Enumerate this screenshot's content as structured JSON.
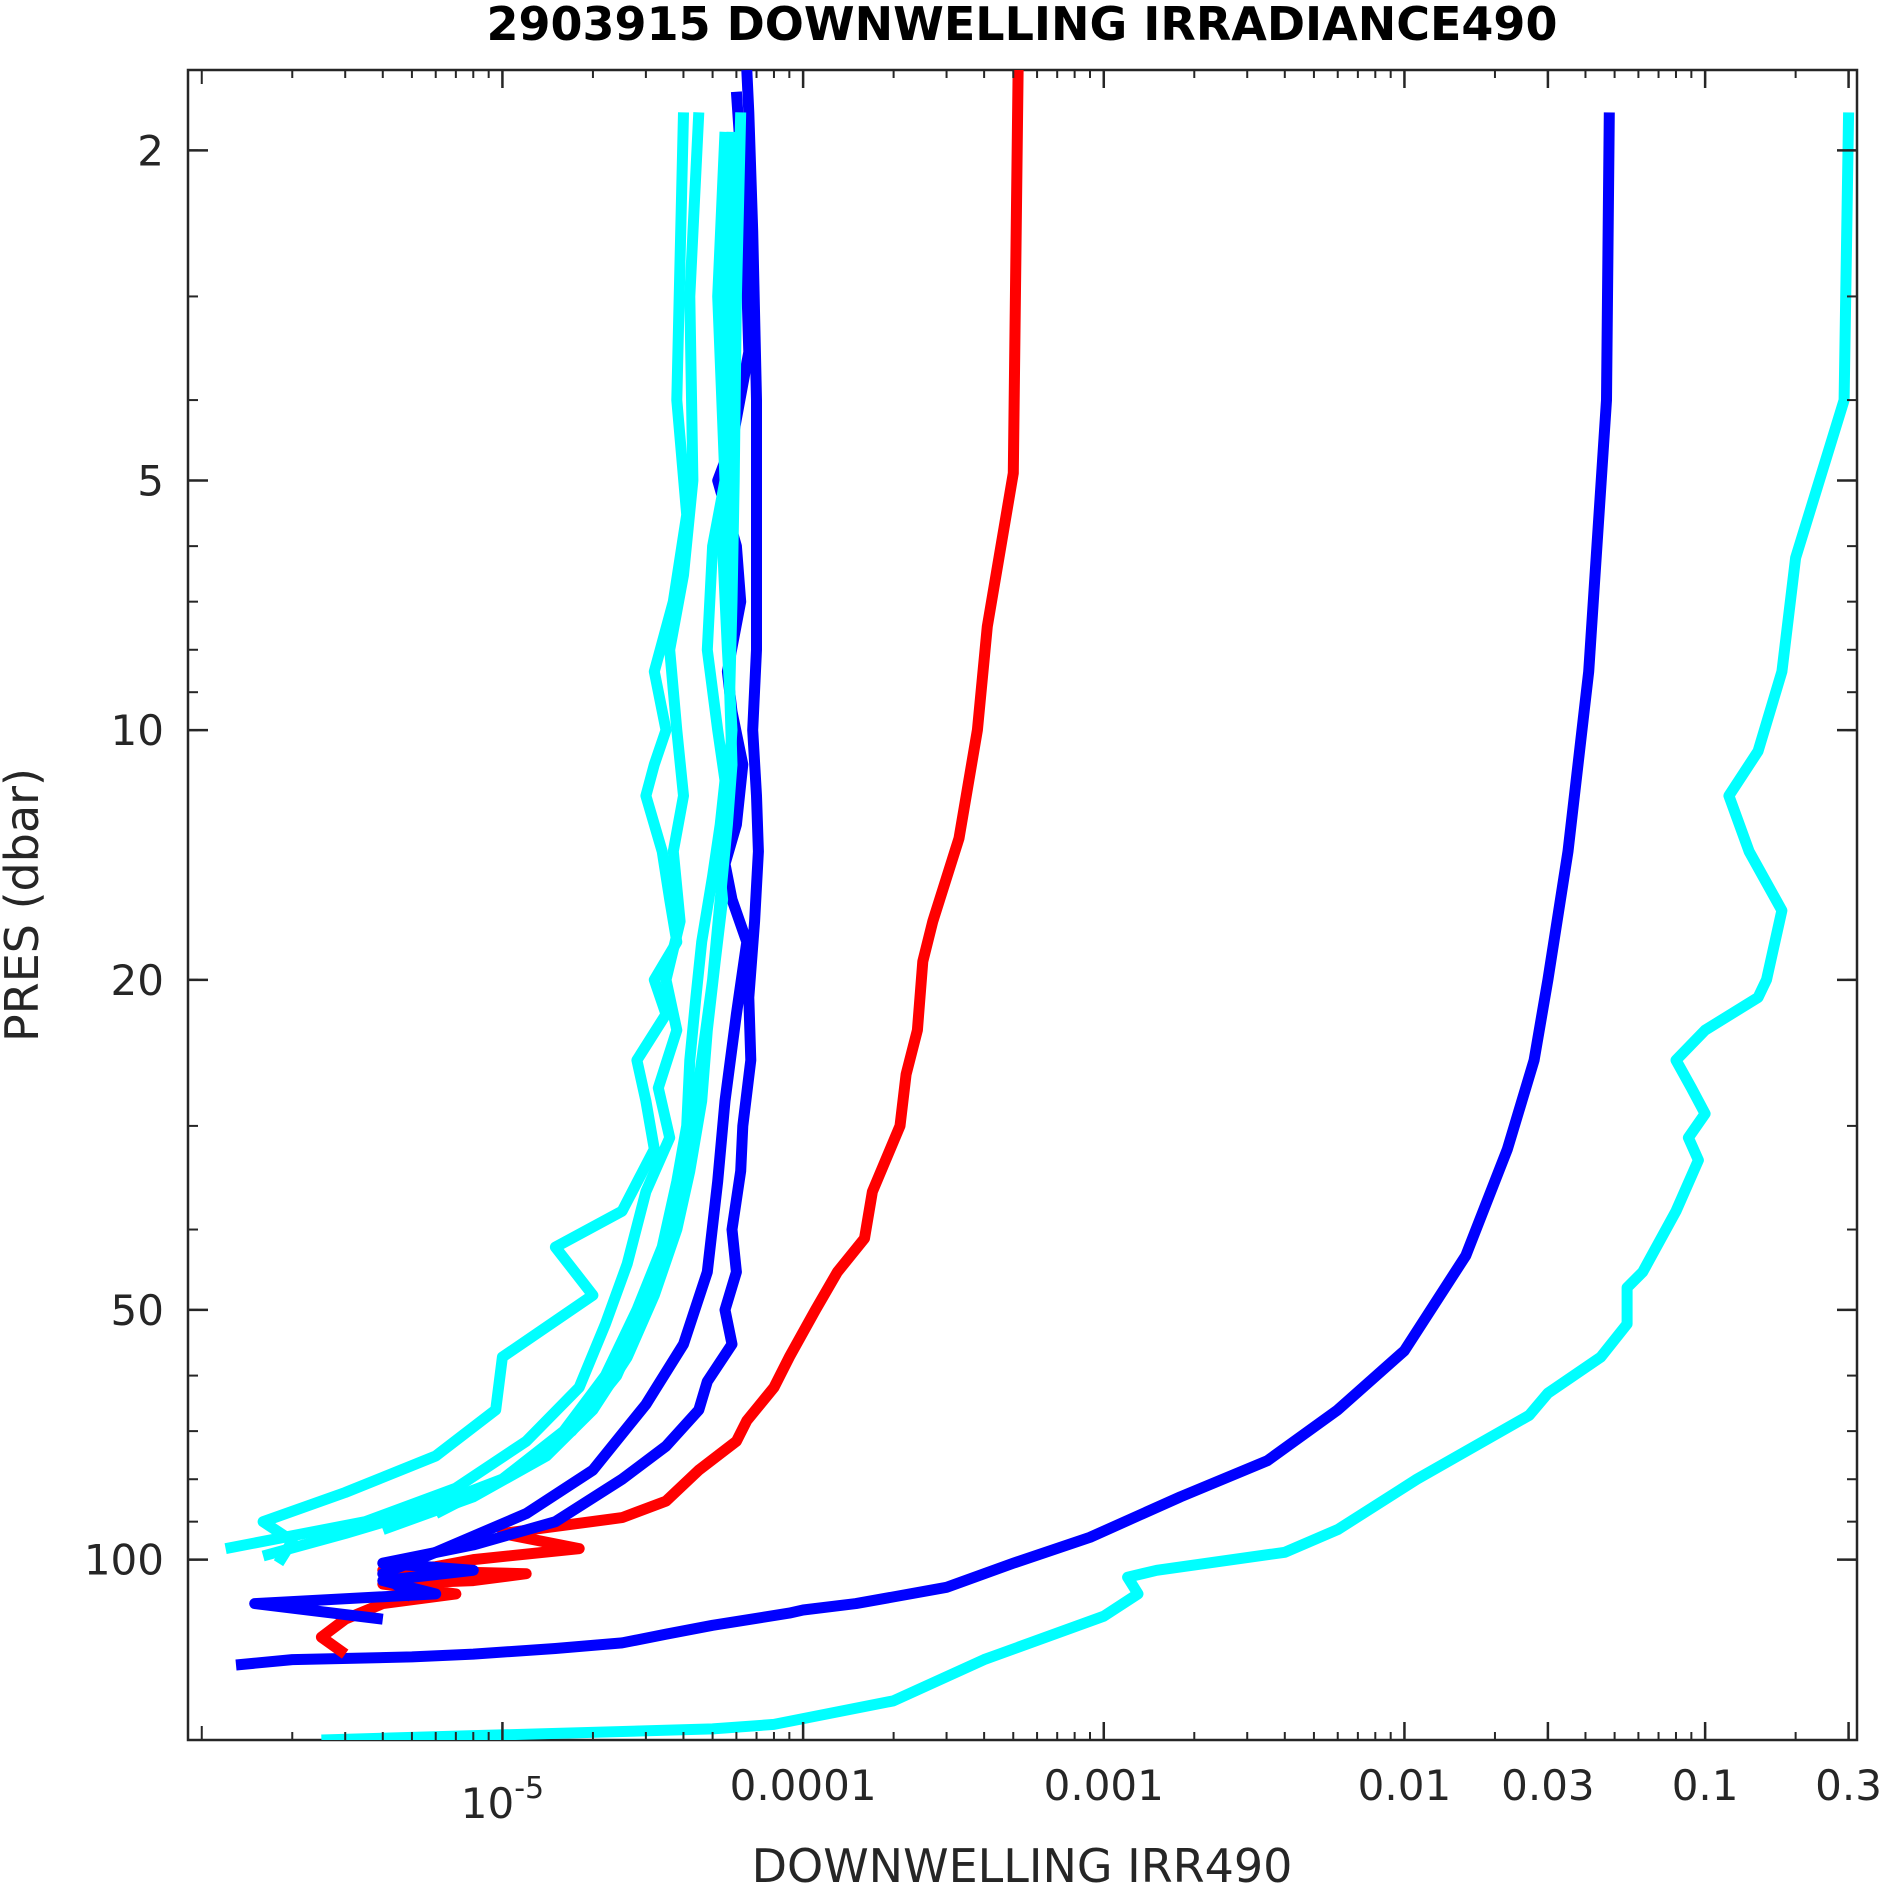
{
  "chart_data": {
    "type": "line",
    "title": "2903915  DOWNWELLING IRRADIANCE490",
    "xlabel": "DOWNWELLING IRR490",
    "ylabel": "PRES (dbar)",
    "xscale": "log",
    "yscale": "log",
    "y_reversed": true,
    "xlim": [
      9e-07,
      0.32
    ],
    "ylim": [
      1.6,
      165
    ],
    "grid": false,
    "legend": "none",
    "x_ticks": [
      {
        "value": 1e-05,
        "label": "10",
        "exponent": "-5"
      },
      {
        "value": 0.0001,
        "label": "0.0001"
      },
      {
        "value": 0.001,
        "label": "0.001"
      },
      {
        "value": 0.01,
        "label": "0.01"
      },
      {
        "value": 0.03,
        "label": "0.03"
      },
      {
        "value": 0.1,
        "label": "0.1"
      },
      {
        "value": 0.3,
        "label": "0.3"
      }
    ],
    "y_ticks": [
      {
        "value": 2,
        "label": "2"
      },
      {
        "value": 5,
        "label": "5"
      },
      {
        "value": 10,
        "label": "10"
      },
      {
        "value": 20,
        "label": "20"
      },
      {
        "value": 50,
        "label": "50"
      },
      {
        "value": 100,
        "label": "100"
      }
    ],
    "colors": {
      "cyan": "#00ffff",
      "blue": "#0000ff",
      "red": "#ff0000",
      "axis": "#262626"
    },
    "series": [
      {
        "color": "#00ffff",
        "points": [
          [
            0.3,
            1.8
          ],
          [
            0.29,
            4
          ],
          [
            0.2,
            6.2
          ],
          [
            0.18,
            8.5
          ],
          [
            0.15,
            10.6
          ],
          [
            0.12,
            12
          ],
          [
            0.14,
            14
          ],
          [
            0.18,
            16.5
          ],
          [
            0.16,
            20
          ],
          [
            0.15,
            21
          ],
          [
            0.1,
            23
          ],
          [
            0.08,
            25
          ],
          [
            0.09,
            27
          ],
          [
            0.1,
            29
          ],
          [
            0.088,
            31
          ],
          [
            0.095,
            33
          ],
          [
            0.08,
            38
          ],
          [
            0.062,
            45
          ],
          [
            0.055,
            47
          ],
          [
            0.055,
            52
          ],
          [
            0.045,
            57
          ],
          [
            0.03,
            63
          ],
          [
            0.026,
            67
          ],
          [
            0.011,
            80
          ],
          [
            0.006,
            92
          ],
          [
            0.004,
            98
          ],
          [
            0.0015,
            103
          ],
          [
            0.0012,
            105
          ],
          [
            0.0013,
            110
          ],
          [
            0.001,
            117
          ],
          [
            0.0004,
            132
          ],
          [
            0.0002,
            148
          ],
          [
            8e-05,
            158
          ],
          [
            5e-05,
            160
          ],
          [
            2.5e-06,
            165
          ]
        ]
      },
      {
        "color": "#0000ff",
        "points": [
          [
            0.048,
            1.8
          ],
          [
            0.047,
            4
          ],
          [
            0.041,
            8.5
          ],
          [
            0.035,
            14
          ],
          [
            0.03,
            20
          ],
          [
            0.027,
            25
          ],
          [
            0.022,
            32
          ],
          [
            0.016,
            43
          ],
          [
            0.01,
            56
          ],
          [
            0.006,
            66
          ],
          [
            0.0035,
            76
          ],
          [
            0.0018,
            84
          ],
          [
            0.0009,
            94
          ],
          [
            0.0005,
            101
          ],
          [
            0.0003,
            108
          ],
          [
            0.00015,
            113
          ],
          [
            0.0001,
            115
          ],
          [
            9e-05,
            116
          ],
          [
            5e-05,
            120
          ],
          [
            3.5e-05,
            123
          ],
          [
            2.5e-05,
            126
          ],
          [
            1.5e-05,
            128
          ],
          [
            8e-06,
            130
          ],
          [
            5e-06,
            131
          ],
          [
            2e-06,
            132
          ],
          [
            1.3e-06,
            134
          ]
        ]
      },
      {
        "color": "#ff0000",
        "points": [
          [
            0.00052,
            1.5
          ],
          [
            0.0005,
            4.9
          ],
          [
            0.00041,
            7.5
          ],
          [
            0.00038,
            10
          ],
          [
            0.00033,
            13.5
          ],
          [
            0.00027,
            17
          ],
          [
            0.00025,
            19
          ],
          [
            0.00024,
            23
          ],
          [
            0.00022,
            26
          ],
          [
            0.00021,
            30
          ],
          [
            0.00017,
            36
          ],
          [
            0.00016,
            41
          ],
          [
            0.00013,
            45
          ],
          [
            0.00011,
            50
          ],
          [
            9e-05,
            57
          ],
          [
            8e-05,
            62
          ],
          [
            6.5e-05,
            68
          ],
          [
            6e-05,
            72
          ],
          [
            4.5e-05,
            78
          ],
          [
            3.5e-05,
            85
          ],
          [
            2.5e-05,
            89
          ],
          [
            1e-05,
            93
          ],
          [
            1.8e-05,
            97
          ],
          [
            8e-06,
            100
          ],
          [
            6e-06,
            102
          ],
          [
            4e-06,
            103
          ],
          [
            1.2e-05,
            104
          ],
          [
            8e-06,
            106
          ],
          [
            4e-06,
            107
          ],
          [
            7e-06,
            110
          ],
          [
            4e-06,
            113
          ],
          [
            3e-06,
            118
          ],
          [
            2.5e-06,
            124
          ],
          [
            3e-06,
            130
          ]
        ]
      },
      {
        "color": "#0000ff",
        "points": [
          [
            6.5e-05,
            1.6
          ],
          [
            6.6e-05,
            1.8
          ],
          [
            6.8e-05,
            2.5
          ],
          [
            7e-05,
            4
          ],
          [
            7e-05,
            6
          ],
          [
            7e-05,
            8
          ],
          [
            6.8e-05,
            10
          ],
          [
            7e-05,
            12
          ],
          [
            7.1e-05,
            14
          ],
          [
            6.9e-05,
            17
          ],
          [
            6.6e-05,
            21
          ],
          [
            6.7e-05,
            25
          ],
          [
            6.3e-05,
            30
          ],
          [
            6.2e-05,
            34
          ],
          [
            5.8e-05,
            40
          ],
          [
            6e-05,
            45
          ],
          [
            5.5e-05,
            50
          ],
          [
            5.8e-05,
            55
          ],
          [
            4.8e-05,
            61
          ],
          [
            4.5e-05,
            66
          ],
          [
            3.5e-05,
            73
          ],
          [
            2.5e-05,
            80
          ],
          [
            1.5e-05,
            90
          ],
          [
            8e-06,
            96
          ],
          [
            4e-06,
            101
          ],
          [
            8e-06,
            103
          ],
          [
            4e-06,
            106
          ],
          [
            6e-06,
            110
          ],
          [
            1.5e-06,
            113
          ],
          [
            4e-06,
            118
          ]
        ]
      },
      {
        "color": "#0000ff",
        "points": [
          [
            6e-05,
            1.7
          ],
          [
            6.4e-05,
            2.4
          ],
          [
            6.6e-05,
            3.5
          ],
          [
            5.8e-05,
            4.5
          ],
          [
            5.2e-05,
            5
          ],
          [
            6e-05,
            6
          ],
          [
            6.2e-05,
            7
          ],
          [
            5.6e-05,
            8.5
          ],
          [
            5.8e-05,
            9.5
          ],
          [
            6.3e-05,
            11
          ],
          [
            6e-05,
            13
          ],
          [
            5.5e-05,
            14.5
          ],
          [
            5.8e-05,
            16
          ],
          [
            6.5e-05,
            18
          ],
          [
            6e-05,
            22
          ],
          [
            5.5e-05,
            28
          ],
          [
            5.2e-05,
            35
          ],
          [
            4.8e-05,
            45
          ],
          [
            4e-05,
            55
          ],
          [
            3e-05,
            65
          ],
          [
            2e-05,
            78
          ],
          [
            1.2e-05,
            88
          ],
          [
            6e-06,
            98
          ],
          [
            4e-06,
            104
          ],
          [
            5e-06,
            111
          ]
        ]
      },
      {
        "color": "#00ffff",
        "points": [
          [
            4e-05,
            1.8
          ],
          [
            3.8e-05,
            4
          ],
          [
            4.1e-05,
            5.5
          ],
          [
            3.7e-05,
            7
          ],
          [
            3.2e-05,
            8.5
          ],
          [
            3.5e-05,
            10
          ],
          [
            3.2e-05,
            11
          ],
          [
            3e-05,
            12
          ],
          [
            3.4e-05,
            14
          ],
          [
            3.6e-05,
            16
          ],
          [
            3.8e-05,
            18
          ],
          [
            3.2e-05,
            20
          ],
          [
            3.5e-05,
            22
          ],
          [
            2.8e-05,
            25
          ],
          [
            3e-05,
            28
          ],
          [
            3.2e-05,
            32
          ],
          [
            2.5e-05,
            38
          ],
          [
            1.5e-05,
            42
          ],
          [
            2e-05,
            48
          ],
          [
            1e-05,
            57
          ],
          [
            9.5e-06,
            66
          ],
          [
            6e-06,
            75
          ],
          [
            3e-06,
            83
          ],
          [
            1.6e-06,
            90
          ],
          [
            2e-06,
            95
          ],
          [
            1.8e-06,
            101
          ]
        ]
      },
      {
        "color": "#00ffff",
        "points": [
          [
            4.5e-05,
            1.8
          ],
          [
            4.2e-05,
            3
          ],
          [
            4.3e-05,
            5
          ],
          [
            4e-05,
            6.5
          ],
          [
            3.6e-05,
            8
          ],
          [
            3.8e-05,
            10
          ],
          [
            4e-05,
            12
          ],
          [
            3.7e-05,
            14
          ],
          [
            3.9e-05,
            17
          ],
          [
            3.5e-05,
            20
          ],
          [
            3.8e-05,
            23
          ],
          [
            3.3e-05,
            27
          ],
          [
            3.6e-05,
            31
          ],
          [
            3e-05,
            36
          ],
          [
            2.6e-05,
            44
          ],
          [
            2.2e-05,
            52
          ],
          [
            1.8e-05,
            62
          ],
          [
            1.2e-05,
            72
          ],
          [
            7e-06,
            82
          ],
          [
            3.5e-06,
            90
          ],
          [
            1.2e-06,
            97
          ]
        ]
      },
      {
        "color": "#00ffff",
        "points": [
          [
            5.5e-05,
            1.9
          ],
          [
            5.2e-05,
            3
          ],
          [
            5.5e-05,
            5
          ],
          [
            5e-05,
            6
          ],
          [
            4.8e-05,
            8
          ],
          [
            5.2e-05,
            10
          ],
          [
            5.5e-05,
            11.5
          ],
          [
            5.3e-05,
            13
          ],
          [
            5e-05,
            15
          ],
          [
            4.6e-05,
            18
          ],
          [
            4.4e-05,
            21
          ],
          [
            4.2e-05,
            25
          ],
          [
            4.1e-05,
            30
          ],
          [
            3.8e-05,
            35
          ],
          [
            3.4e-05,
            42
          ],
          [
            2.8e-05,
            50
          ],
          [
            2.2e-05,
            60
          ],
          [
            1.6e-05,
            70
          ],
          [
            1e-05,
            80
          ],
          [
            5e-06,
            88
          ],
          [
            3e-06,
            93
          ],
          [
            1.6e-06,
            99
          ]
        ]
      },
      {
        "color": "#00ffff",
        "points": [
          [
            5.8e-05,
            1.9
          ],
          [
            5.6e-05,
            3
          ],
          [
            5.8e-05,
            4.5
          ],
          [
            5.4e-05,
            6
          ],
          [
            5.6e-05,
            8
          ],
          [
            5.8e-05,
            10
          ],
          [
            5.6e-05,
            12
          ],
          [
            5.2e-05,
            14
          ],
          [
            5.4e-05,
            16
          ],
          [
            5.1e-05,
            19
          ],
          [
            4.8e-05,
            23
          ],
          [
            4.6e-05,
            28
          ],
          [
            4.2e-05,
            34
          ],
          [
            3.8e-05,
            40
          ],
          [
            3.2e-05,
            48
          ],
          [
            2.6e-05,
            57
          ],
          [
            2e-05,
            66
          ],
          [
            1.4e-05,
            75
          ],
          [
            8e-06,
            84
          ],
          [
            4e-06,
            92
          ]
        ]
      },
      {
        "color": "#00ffff",
        "points": [
          [
            6.2e-05,
            1.8
          ],
          [
            6e-05,
            3
          ],
          [
            5.9e-05,
            5
          ],
          [
            5.8e-05,
            7
          ],
          [
            5.7e-05,
            9
          ],
          [
            5.8e-05,
            11
          ],
          [
            5.6e-05,
            13
          ],
          [
            5.3e-05,
            16
          ],
          [
            5e-05,
            20
          ],
          [
            4.6e-05,
            25
          ],
          [
            4.2e-05,
            32
          ],
          [
            3.6e-05,
            40
          ],
          [
            3e-05,
            50
          ],
          [
            2.4e-05,
            60
          ],
          [
            1.7e-05,
            70
          ],
          [
            1e-05,
            80
          ],
          [
            6e-06,
            88
          ]
        ]
      }
    ]
  }
}
